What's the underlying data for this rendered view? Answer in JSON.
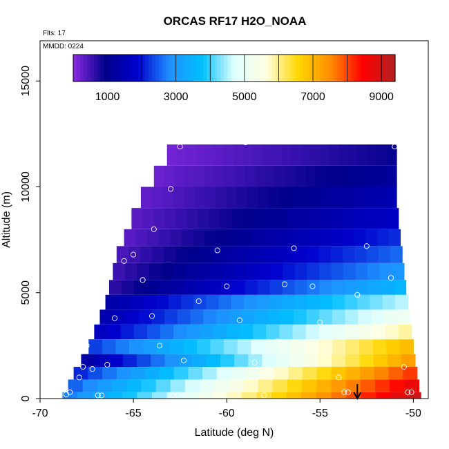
{
  "chart_data": {
    "type": "heatmap",
    "title": "ORCAS RF17 H2O_NOAA",
    "xlabel": "Latitude (deg N)",
    "ylabel": "Altitude (m)",
    "xlim": [
      -70,
      -49.2
    ],
    "ylim": [
      0,
      16900
    ],
    "x_ticks": [
      -70,
      -65,
      -60,
      -55,
      -50
    ],
    "y_ticks": [
      0,
      5000,
      10000,
      15000
    ],
    "corner_labels": {
      "flights": "Flts: 17",
      "date": "MMDD: 0224"
    },
    "colorbar": {
      "min": 0,
      "max": 9400,
      "ticks": [
        1000,
        3000,
        5000,
        7000,
        9000
      ],
      "colors": [
        "#8a2be2",
        "#00008b",
        "#0000cd",
        "#1e90ff",
        "#00bfff",
        "#e0ffff",
        "#ffffe0",
        "#ffd700",
        "#ff8c00",
        "#ff0000",
        "#b22222"
      ]
    },
    "arrow_latitude": -53,
    "bands": [
      {
        "y0": 0,
        "y1": 300,
        "x0": -68.8,
        "x1": -49.6,
        "v0": 2600,
        "v1": 9200
      },
      {
        "y0": 300,
        "y1": 900,
        "x0": -68.5,
        "x1": -49.7,
        "v0": 2400,
        "v1": 8800
      },
      {
        "y0": 900,
        "y1": 1500,
        "x0": -68.2,
        "x1": -49.8,
        "v0": 2000,
        "v1": 8200
      },
      {
        "y0": 1500,
        "y1": 2100,
        "x0": -67.8,
        "x1": -49.9,
        "v0": 1200,
        "v1": 7400
      },
      {
        "y0": 2100,
        "y1": 2800,
        "x0": -67.4,
        "x1": -50.0,
        "v0": 2200,
        "v1": 7000
      },
      {
        "y0": 2800,
        "y1": 3500,
        "x0": -67.1,
        "x1": -50.1,
        "v0": 1600,
        "v1": 6000
      },
      {
        "y0": 3500,
        "y1": 4200,
        "x0": -66.8,
        "x1": -50.2,
        "v0": 1400,
        "v1": 5200
      },
      {
        "y0": 4200,
        "y1": 4900,
        "x0": -66.5,
        "x1": -50.3,
        "v0": 1300,
        "v1": 4600
      },
      {
        "y0": 4900,
        "y1": 5600,
        "x0": -66.3,
        "x1": -50.4,
        "v0": 600,
        "v1": 3600
      },
      {
        "y0": 5600,
        "y1": 6400,
        "x0": -66.1,
        "x1": -50.5,
        "v0": 500,
        "v1": 3000
      },
      {
        "y0": 6400,
        "y1": 7200,
        "x0": -65.9,
        "x1": -50.6,
        "v0": 400,
        "v1": 2600
      },
      {
        "y0": 7200,
        "y1": 8000,
        "x0": -65.5,
        "x1": -50.7,
        "v0": 300,
        "v1": 2200
      },
      {
        "y0": 8000,
        "y1": 9000,
        "x0": -65.1,
        "x1": -50.8,
        "v0": 300,
        "v1": 1800
      },
      {
        "y0": 9000,
        "y1": 10000,
        "x0": -64.6,
        "x1": -50.9,
        "v0": 250,
        "v1": 1500
      },
      {
        "y0": 10000,
        "y1": 11000,
        "x0": -63.9,
        "x1": -50.9,
        "v0": 200,
        "v1": 1200
      },
      {
        "y0": 11000,
        "y1": 12000,
        "x0": -63.2,
        "x1": -50.9,
        "v0": 150,
        "v1": 900
      }
    ],
    "points": [
      {
        "x": -68.6,
        "y": 200
      },
      {
        "x": -68.4,
        "y": 300
      },
      {
        "x": -67.9,
        "y": 1000
      },
      {
        "x": -67.7,
        "y": 1500
      },
      {
        "x": -67.5,
        "y": 2500
      },
      {
        "x": -67.2,
        "y": 1400
      },
      {
        "x": -66.9,
        "y": 150
      },
      {
        "x": -66.7,
        "y": 150
      },
      {
        "x": -66.4,
        "y": 1600
      },
      {
        "x": -67.1,
        "y": 3800
      },
      {
        "x": -66.0,
        "y": 3800
      },
      {
        "x": -66.8,
        "y": 5600
      },
      {
        "x": -66.4,
        "y": 7600
      },
      {
        "x": -65.5,
        "y": 6500
      },
      {
        "x": -65.0,
        "y": 6800
      },
      {
        "x": -64.5,
        "y": 5600
      },
      {
        "x": -64.0,
        "y": 3900
      },
      {
        "x": -63.9,
        "y": 8000
      },
      {
        "x": -63.6,
        "y": 2500
      },
      {
        "x": -63.0,
        "y": 9900
      },
      {
        "x": -62.9,
        "y": 150
      },
      {
        "x": -62.6,
        "y": 150
      },
      {
        "x": -62.5,
        "y": 11900
      },
      {
        "x": -62.3,
        "y": 1800
      },
      {
        "x": -61.5,
        "y": 4600
      },
      {
        "x": -60.5,
        "y": 7000
      },
      {
        "x": -60.0,
        "y": 5300
      },
      {
        "x": -59.3,
        "y": 3700
      },
      {
        "x": -59.0,
        "y": 12100
      },
      {
        "x": -58.5,
        "y": 1700
      },
      {
        "x": -58.0,
        "y": 150
      },
      {
        "x": -57.3,
        "y": 2700
      },
      {
        "x": -56.9,
        "y": 5400
      },
      {
        "x": -56.4,
        "y": 7100
      },
      {
        "x": -55.4,
        "y": 5300
      },
      {
        "x": -55.0,
        "y": 3600
      },
      {
        "x": -54.6,
        "y": 2300
      },
      {
        "x": -54.0,
        "y": 1000
      },
      {
        "x": -53.7,
        "y": 300
      },
      {
        "x": -53.5,
        "y": 300
      },
      {
        "x": -53.0,
        "y": 4900
      },
      {
        "x": -52.5,
        "y": 7200
      },
      {
        "x": -51.2,
        "y": 5700
      },
      {
        "x": -51.0,
        "y": 11900
      },
      {
        "x": -50.8,
        "y": 4000
      },
      {
        "x": -50.5,
        "y": 1500
      },
      {
        "x": -50.3,
        "y": 300
      },
      {
        "x": -50.1,
        "y": 300
      },
      {
        "x": -49.5,
        "y": 800
      }
    ]
  }
}
